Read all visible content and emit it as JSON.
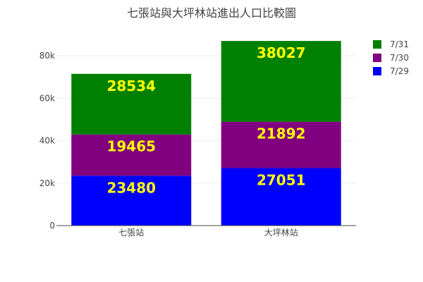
{
  "chart_data": {
    "type": "bar",
    "stacked": true,
    "title": "七張站與大坪林站進出人口比較圖",
    "xlabel": "",
    "ylabel": "",
    "categories": [
      "七張站",
      "大坪林站"
    ],
    "ylim": [
      0,
      88000
    ],
    "yticks": [
      0,
      20000,
      40000,
      60000,
      80000
    ],
    "ytick_labels": [
      "0",
      "20k",
      "40k",
      "60k",
      "80k"
    ],
    "grid": true,
    "legend_position": "top-right",
    "label_color": "#ffff00",
    "series": [
      {
        "name": "7/29",
        "color": "#0000ff",
        "values": [
          23480,
          27051
        ]
      },
      {
        "name": "7/30",
        "color": "#800080",
        "values": [
          19465,
          21892
        ]
      },
      {
        "name": "7/31",
        "color": "#008000",
        "values": [
          28534,
          38027
        ]
      }
    ]
  }
}
